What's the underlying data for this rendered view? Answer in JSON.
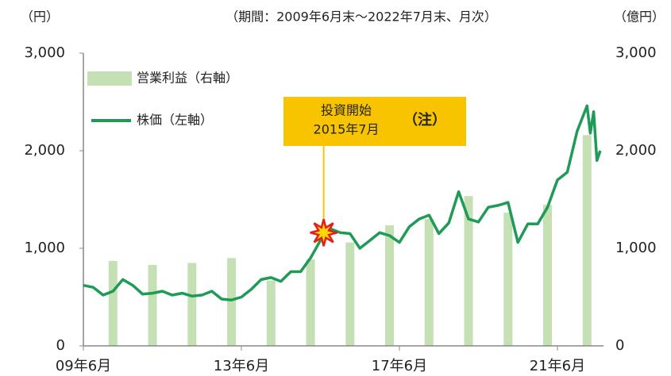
{
  "chart_data": {
    "type": "bar_line",
    "title": "（期間：2009年6月末～2022年7月末、月次）",
    "y_label": "（円）",
    "y2_label": "（億円）",
    "xlim": [
      "2009-06",
      "2022-08"
    ],
    "xticks": [
      {
        "value": "2009-06",
        "label": "09年6月"
      },
      {
        "value": "2013-06",
        "label": "13年6月"
      },
      {
        "value": "2017-06",
        "label": "17年6月"
      },
      {
        "value": "2021-06",
        "label": "21年6月"
      }
    ],
    "ylim": [
      0,
      3000
    ],
    "yticks": [
      0,
      {
        "value": 1000,
        "label": "1,000"
      },
      {
        "value": 2000,
        "label": "2,000"
      },
      {
        "value": 3000,
        "label": "3,000"
      }
    ],
    "y2lim": [
      0,
      3000
    ],
    "y2ticks": [
      0,
      {
        "value": 1000,
        "label": "1,000"
      },
      {
        "value": 2000,
        "label": "2,000"
      },
      {
        "value": 3000,
        "label": "3,000"
      }
    ],
    "series": [
      {
        "name": "営業利益（右軸）",
        "type": "bar",
        "axis": "y2",
        "color": "#c5e0b4",
        "x": [
          "2010-03",
          "2011-03",
          "2012-03",
          "2013-03",
          "2014-03",
          "2015-03",
          "2016-03",
          "2017-03",
          "2018-03",
          "2019-03",
          "2020-03",
          "2021-03",
          "2022-03"
        ],
        "values": [
          870,
          830,
          850,
          900,
          670,
          885,
          1060,
          1235,
          1300,
          1535,
          1365,
          1445,
          2160
        ]
      },
      {
        "name": "株価（左軸）",
        "type": "line",
        "axis": "y",
        "color": "#1f9a57",
        "x": [
          "2009-06",
          "2009-09",
          "2009-12",
          "2010-03",
          "2010-06",
          "2010-09",
          "2010-12",
          "2011-03",
          "2011-06",
          "2011-09",
          "2011-12",
          "2012-03",
          "2012-06",
          "2012-09",
          "2012-12",
          "2013-03",
          "2013-06",
          "2013-09",
          "2013-12",
          "2014-03",
          "2014-06",
          "2014-09",
          "2014-12",
          "2015-03",
          "2015-06",
          "2015-07",
          "2015-09",
          "2015-12",
          "2016-03",
          "2016-06",
          "2016-09",
          "2016-12",
          "2017-03",
          "2017-06",
          "2017-09",
          "2017-12",
          "2018-03",
          "2018-06",
          "2018-09",
          "2018-12",
          "2019-03",
          "2019-06",
          "2019-09",
          "2019-12",
          "2020-03",
          "2020-06",
          "2020-09",
          "2020-12",
          "2021-03",
          "2021-06",
          "2021-09",
          "2021-12",
          "2022-03",
          "2022-04",
          "2022-05",
          "2022-06",
          "2022-07"
        ],
        "values": [
          620,
          600,
          520,
          560,
          680,
          620,
          530,
          540,
          560,
          520,
          540,
          510,
          520,
          560,
          480,
          470,
          500,
          580,
          680,
          700,
          660,
          760,
          760,
          900,
          1080,
          1160,
          1200,
          1160,
          1150,
          1000,
          1080,
          1160,
          1130,
          1060,
          1220,
          1300,
          1340,
          1150,
          1260,
          1580,
          1300,
          1270,
          1420,
          1440,
          1470,
          1060,
          1250,
          1250,
          1420,
          1700,
          1780,
          2200,
          2460,
          2180,
          2400,
          1900,
          2000
        ]
      }
    ],
    "annotation": {
      "lines": [
        "投資開始",
        "2015年7月"
      ],
      "note": "（注）",
      "x": "2015-07"
    }
  }
}
